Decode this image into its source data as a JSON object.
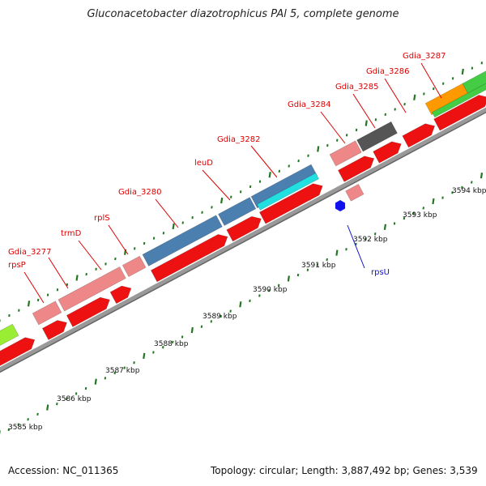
{
  "title": "Gluconacetobacter diazotrophicus PAl 5, complete genome",
  "footer": {
    "accession": "Accession: NC_011365",
    "topology": "Topology: circular; Length: 3,887,492 bp; Genes: 3,539"
  },
  "colors": {
    "cds_red": "#ee1111",
    "pink": "#ee8888",
    "steel_blue": "#4a7fb0",
    "cyan": "#22e0e0",
    "dark_gray": "#555555",
    "orange": "#ff9900",
    "green": "#44cc44",
    "lime": "#99ee33",
    "blue": "#1111ee",
    "tick_green": "#227722",
    "label_red": "#dd0000",
    "label_blue": "#1111cc"
  },
  "scale": {
    "unit": "kbp",
    "tick_labels": [
      "3585 kbp",
      "3586 kbp",
      "3587 kbp",
      "3588 kbp",
      "3589 kbp",
      "3590 kbp",
      "3591 kbp",
      "3592 kbp",
      "3593 kbp",
      "3594 kbp"
    ]
  },
  "genes": [
    {
      "label": "rpsP",
      "color": "label_red"
    },
    {
      "label": "Gdia_3277",
      "color": "label_red"
    },
    {
      "label": "trmD",
      "color": "label_red"
    },
    {
      "label": "rplS",
      "color": "label_red"
    },
    {
      "label": "Gdia_3280",
      "color": "label_red"
    },
    {
      "label": "leuD",
      "color": "label_red"
    },
    {
      "label": "Gdia_3282",
      "color": "label_red"
    },
    {
      "label": "Gdia_3284",
      "color": "label_red"
    },
    {
      "label": "Gdia_3285",
      "color": "label_red"
    },
    {
      "label": "Gdia_3286",
      "color": "label_red"
    },
    {
      "label": "Gdia_3287",
      "color": "label_red"
    },
    {
      "label": "rpsU",
      "color": "label_blue"
    }
  ]
}
